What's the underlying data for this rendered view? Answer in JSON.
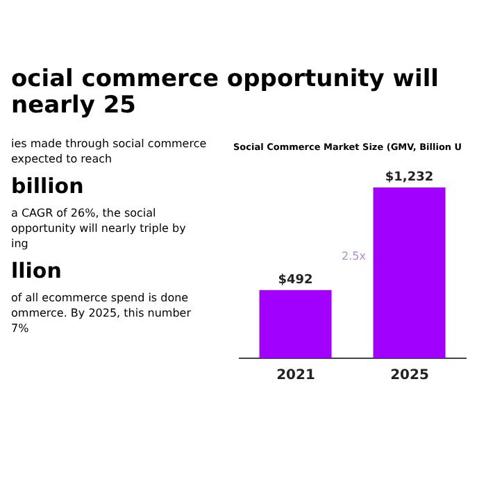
{
  "chart_data": {
    "type": "bar",
    "title": "ocial commerce opportunity will nearly 25",
    "subtitle": "Social Commerce Market Size (GMV, Billion U",
    "categories": [
      "2021",
      "2025"
    ],
    "values": [
      492,
      1232
    ],
    "value_labels": [
      "$492",
      "$1,232"
    ],
    "color": "#a100ff",
    "annotations": [
      "ies made through social commerce",
      "expected to reach",
      "billion",
      "a CAGR of 26%, the social",
      "opportunity will nearly triple by",
      "ing",
      "llion",
      "of all ecommerce spend is done",
      "ommerce. By 2025, this number",
      "7%",
      "2.5x"
    ]
  }
}
